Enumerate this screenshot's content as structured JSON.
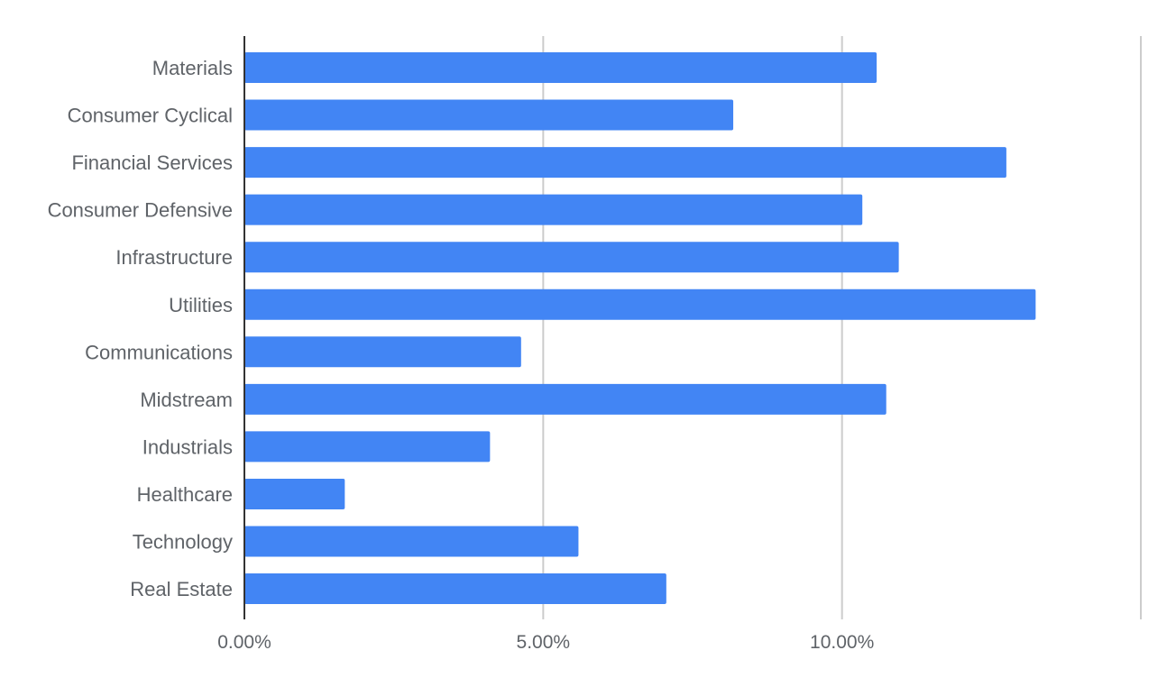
{
  "chart_data": {
    "type": "bar",
    "orientation": "horizontal",
    "categories": [
      "Materials",
      "Consumer Cyclical",
      "Financial Services",
      "Consumer Defensive",
      "Infrastructure",
      "Utilities",
      "Communications",
      "Midstream",
      "Industrials",
      "Healthcare",
      "Technology",
      "Real Estate"
    ],
    "values": [
      10.58,
      8.18,
      12.75,
      10.34,
      10.95,
      13.24,
      4.63,
      10.74,
      4.11,
      1.68,
      5.59,
      7.06
    ],
    "xlim": [
      0,
      15
    ],
    "xticks": [
      0,
      5,
      10,
      15
    ],
    "xtick_labels": [
      "0.00%",
      "5.00%",
      "10.00%",
      ""
    ],
    "title": "",
    "xlabel": "",
    "ylabel": "",
    "grid": true,
    "legend": "none",
    "colors": {
      "bar": "#4285f4",
      "grid": "#cccccc",
      "axis": "#333333",
      "text": "#5f6368"
    }
  }
}
